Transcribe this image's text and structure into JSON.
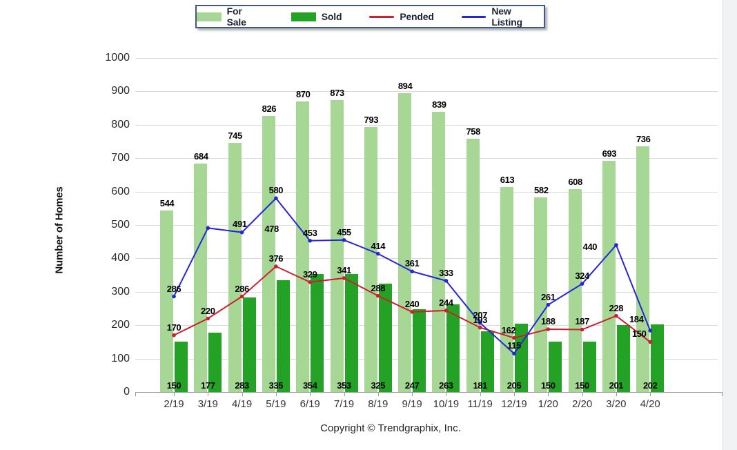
{
  "window": {
    "background": "#ffffff",
    "right_strip_color": "#f1f2f4"
  },
  "chart_data": {
    "type": "bar",
    "title": "",
    "xlabel": "",
    "ylabel": "Number of Homes",
    "ylim": [
      0,
      1000
    ],
    "ytick_step": 100,
    "grid": true,
    "legend_position": "top",
    "categories": [
      "2/19",
      "3/19",
      "4/19",
      "5/19",
      "6/19",
      "7/19",
      "8/19",
      "9/19",
      "10/19",
      "11/19",
      "12/19",
      "1/20",
      "2/20",
      "3/20",
      "4/20"
    ],
    "series": [
      {
        "name": "For Sale",
        "kind": "bar",
        "color": "#a6d794",
        "values": [
          544,
          684,
          745,
          826,
          870,
          873,
          793,
          894,
          839,
          758,
          613,
          582,
          608,
          693,
          736
        ]
      },
      {
        "name": "Sold",
        "kind": "bar",
        "color": "#23a226",
        "values": [
          150,
          177,
          283,
          335,
          354,
          353,
          325,
          247,
          263,
          181,
          205,
          150,
          150,
          201,
          202
        ]
      },
      {
        "name": "Pended",
        "kind": "line",
        "color": "#cb2030",
        "values": [
          170,
          220,
          286,
          376,
          329,
          341,
          288,
          240,
          244,
          193,
          162,
          188,
          187,
          228,
          150
        ]
      },
      {
        "name": "New Listing",
        "kind": "line",
        "color": "#2626d9",
        "values": [
          286,
          491,
          478,
          580,
          453,
          455,
          414,
          361,
          333,
          207,
          115,
          261,
          324,
          440,
          184
        ]
      }
    ]
  },
  "footer": {
    "copyright": "Copyright © Trendgraphix, Inc."
  }
}
